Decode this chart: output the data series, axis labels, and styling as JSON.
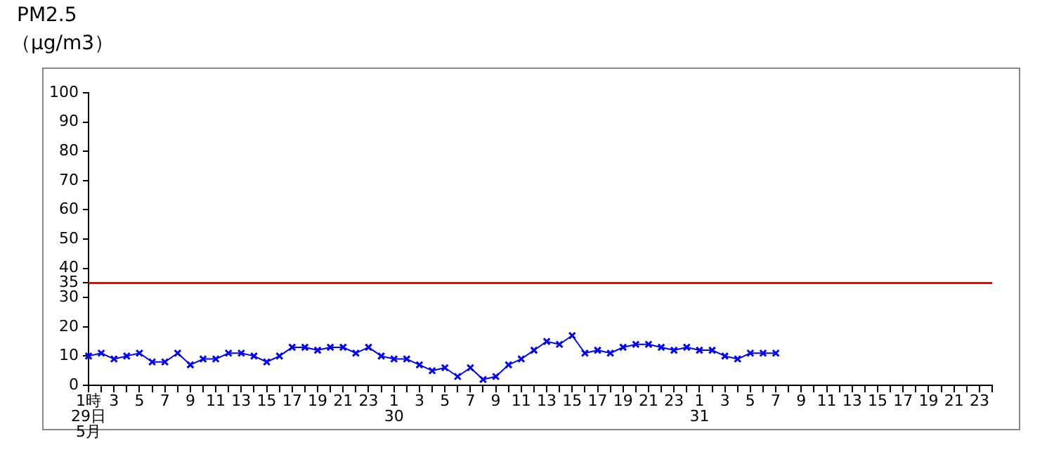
{
  "chart_data": {
    "type": "line",
    "title": "PM2.5",
    "ylabel": "（μg/m3）",
    "categories": [
      "1時\n29日\n5月",
      null,
      "3",
      null,
      "5",
      null,
      "7",
      null,
      "9",
      null,
      "11",
      null,
      "13",
      null,
      "15",
      null,
      "17",
      null,
      "19",
      null,
      "21",
      null,
      "23",
      null,
      "1\n30",
      null,
      "3",
      null,
      "5",
      null,
      "7",
      null,
      "9",
      null,
      "11",
      null,
      "13",
      null,
      "15",
      null,
      "17",
      null,
      "19",
      null,
      "21",
      null,
      "23",
      null,
      "1\n31",
      null,
      "3",
      null,
      "5",
      null,
      "7",
      null,
      "9",
      null,
      "11",
      null,
      "13",
      null,
      "15",
      null,
      "17",
      null,
      "19",
      null,
      "21",
      null,
      "23",
      null
    ],
    "series": [
      {
        "color": "#0000ff",
        "values": [
          10,
          11,
          9,
          10,
          11,
          8,
          8,
          11,
          7,
          9,
          9,
          11,
          11,
          10,
          8,
          10,
          13,
          13,
          12,
          13,
          13,
          11,
          13,
          10,
          9,
          9,
          7,
          5,
          6,
          3,
          6,
          2,
          3,
          7,
          9,
          12,
          15,
          14,
          17,
          11,
          12,
          11,
          13,
          14,
          14,
          13,
          12,
          13,
          12,
          12,
          10,
          9,
          11,
          11,
          11,
          null,
          null,
          null,
          null,
          null,
          null,
          null,
          null,
          null,
          null,
          null,
          null,
          null,
          null,
          null,
          null,
          null
        ]
      }
    ],
    "ylim": [
      0,
      100
    ],
    "yticks": [
      0,
      10,
      20,
      30,
      35,
      40,
      50,
      60,
      70,
      80,
      90,
      100
    ],
    "ref_lines": [
      {
        "axis": "y",
        "value": 35,
        "color": "#ff0000"
      }
    ],
    "grid": false,
    "legend": false,
    "marker": "cross",
    "line_style": "solid"
  }
}
